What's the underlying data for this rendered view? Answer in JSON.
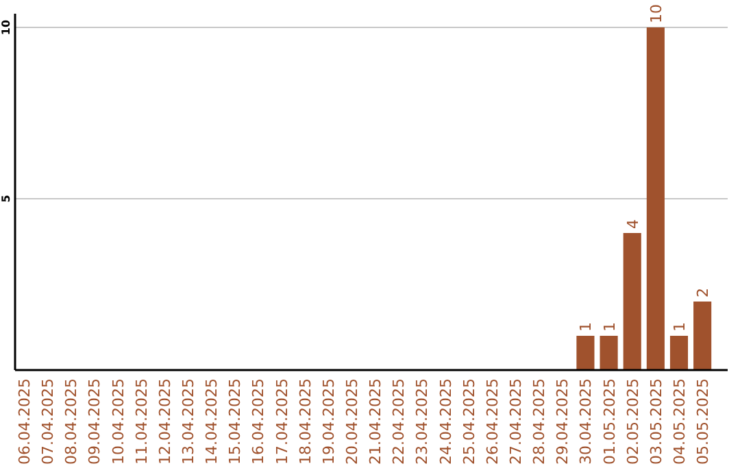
{
  "chart_data": {
    "type": "bar",
    "categories": [
      "06.04.2025",
      "07.04.2025",
      "08.04.2025",
      "09.04.2025",
      "10.04.2025",
      "11.04.2025",
      "12.04.2025",
      "13.04.2025",
      "14.04.2025",
      "15.04.2025",
      "16.04.2025",
      "17.04.2025",
      "18.04.2025",
      "19.04.2025",
      "20.04.2025",
      "21.04.2025",
      "22.04.2025",
      "23.04.2025",
      "24.04.2025",
      "25.04.2025",
      "26.04.2025",
      "27.04.2025",
      "28.04.2025",
      "29.04.2025",
      "30.04.2025",
      "01.05.2025",
      "02.05.2025",
      "03.05.2025",
      "04.05.2025",
      "05.05.2025"
    ],
    "values": [
      0,
      0,
      0,
      0,
      0,
      0,
      0,
      0,
      0,
      0,
      0,
      0,
      0,
      0,
      0,
      0,
      0,
      0,
      0,
      0,
      0,
      0,
      0,
      0,
      1,
      1,
      4,
      10,
      1,
      2
    ],
    "value_labels": [
      null,
      null,
      null,
      null,
      null,
      null,
      null,
      null,
      null,
      null,
      null,
      null,
      null,
      null,
      null,
      null,
      null,
      null,
      null,
      null,
      null,
      null,
      null,
      null,
      "1",
      "1",
      "4",
      "10",
      "1",
      "2"
    ],
    "color": "#a0522d",
    "ylim": [
      0,
      10.4
    ],
    "yticks": [
      5,
      10
    ],
    "grid": "y"
  }
}
